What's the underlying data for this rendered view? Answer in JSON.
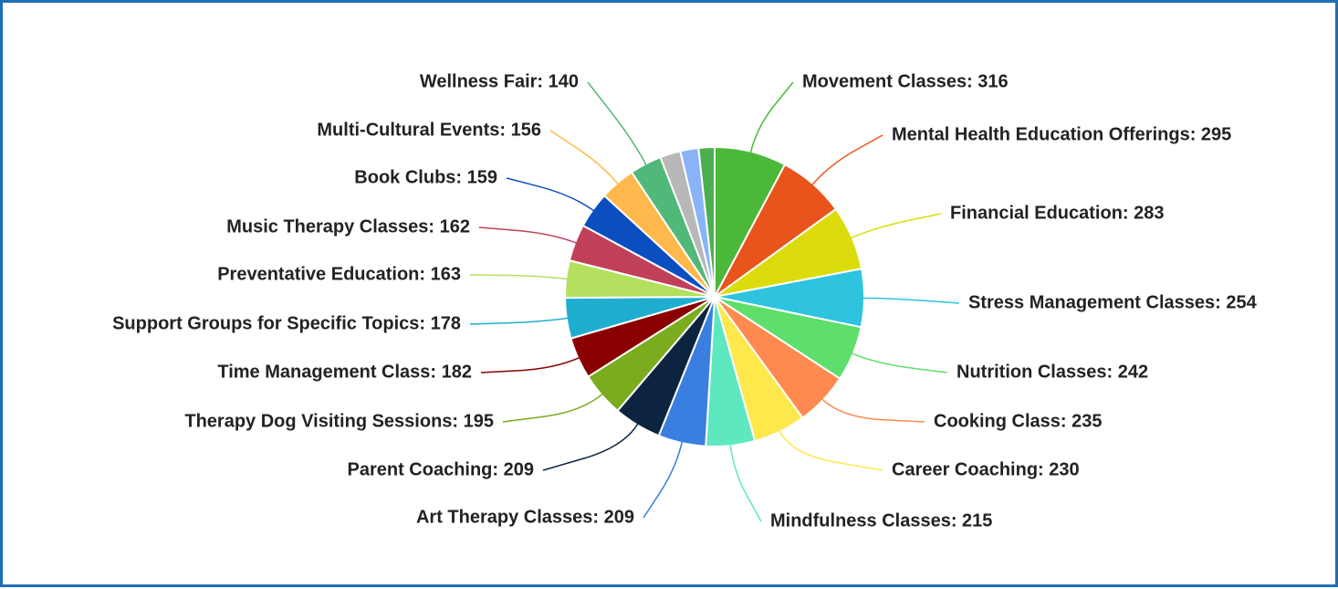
{
  "chart_data": {
    "type": "pie",
    "categories": [
      "Movement Classes: 316",
      "Mental Health Education Offerings: 295",
      "Financial Education: 283",
      "Stress Management Classes: 254",
      "Nutrition Classes: 242",
      "Cooking Class: 235",
      "Career Coaching: 230",
      "Mindfulness Classes: 215",
      "Art Therapy Classes: 209",
      "Parent Coaching: 209",
      "Therapy Dog Visiting Sessions: 195",
      "Time Management Class: 182",
      "Support Groups for Specific Topics: 178",
      "Preventative Education: 163",
      "Music Therapy Classes: 162",
      "Book Clubs: 159",
      "Multi-Cultural Events: 156",
      "Wellness Fair: 140",
      null,
      null,
      null
    ],
    "values": [
      316,
      295,
      283,
      254,
      242,
      235,
      230,
      215,
      209,
      209,
      195,
      182,
      178,
      163,
      162,
      159,
      156,
      140,
      90,
      80,
      70
    ],
    "colors": [
      "#4cb83a",
      "#e8541c",
      "#dcdc0c",
      "#2ec4e0",
      "#5ede6a",
      "#ff8a50",
      "#ffe84c",
      "#5ee8c0",
      "#3a7ee0",
      "#0c2440",
      "#7aac1e",
      "#8a0000",
      "#20aed0",
      "#b4e060",
      "#c0405a",
      "#0a4ec0",
      "#ffb84c",
      "#50b878",
      "#b8b8b8",
      "#8ab4f8",
      "#4caf50"
    ]
  }
}
